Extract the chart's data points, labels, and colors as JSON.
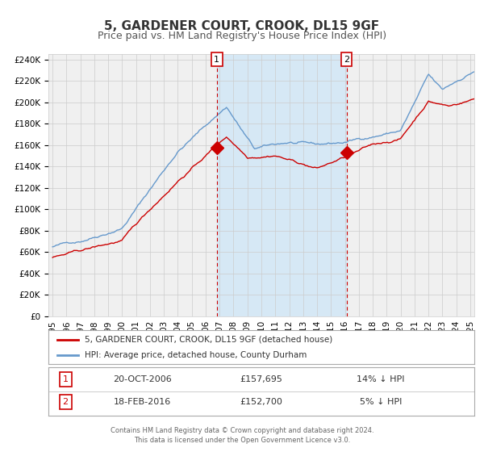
{
  "title": "5, GARDENER COURT, CROOK, DL15 9GF",
  "subtitle": "Price paid vs. HM Land Registry's House Price Index (HPI)",
  "x_start": 1995.0,
  "x_end": 2025.3,
  "y_min": 0,
  "y_max": 240000,
  "y_ticks": [
    0,
    20000,
    40000,
    60000,
    80000,
    100000,
    120000,
    140000,
    160000,
    180000,
    200000,
    220000,
    240000
  ],
  "x_ticks": [
    1995,
    1996,
    1997,
    1998,
    1999,
    2000,
    2001,
    2002,
    2003,
    2004,
    2005,
    2006,
    2007,
    2008,
    2009,
    2010,
    2011,
    2012,
    2013,
    2014,
    2015,
    2016,
    2017,
    2018,
    2019,
    2020,
    2021,
    2022,
    2023,
    2024,
    2025
  ],
  "red_line_color": "#cc0000",
  "blue_line_color": "#6699cc",
  "blue_fill_color": "#d6e8f5",
  "background_color": "#f0f0f0",
  "grid_color": "#cccccc",
  "sale1_x": 2006.8,
  "sale1_y": 157695,
  "sale1_label": "1",
  "sale2_x": 2016.12,
  "sale2_y": 152700,
  "sale2_label": "2",
  "vline_color": "#cc0000",
  "shade_x1": 2006.8,
  "shade_x2": 2016.12,
  "legend_red": "5, GARDENER COURT, CROOK, DL15 9GF (detached house)",
  "legend_blue": "HPI: Average price, detached house, County Durham",
  "table_row1": [
    "1",
    "20-OCT-2006",
    "£157,695",
    "14% ↓ HPI"
  ],
  "table_row2": [
    "2",
    "18-FEB-2016",
    "£152,700",
    "5% ↓ HPI"
  ],
  "footer": "Contains HM Land Registry data © Crown copyright and database right 2024.\nThis data is licensed under the Open Government Licence v3.0.",
  "title_fontsize": 11,
  "subtitle_fontsize": 9,
  "tick_fontsize": 7.5
}
